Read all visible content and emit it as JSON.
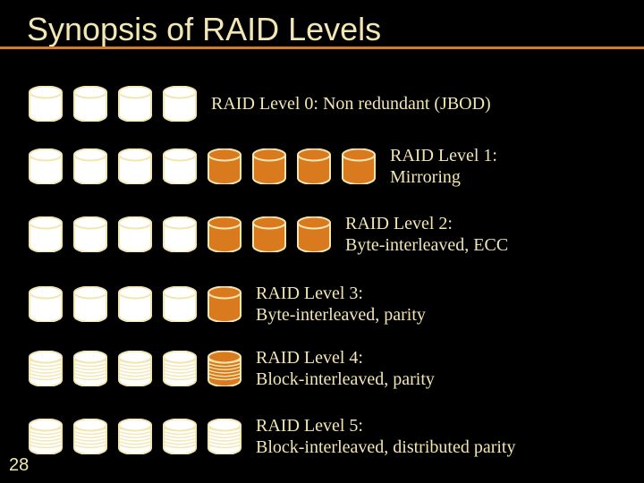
{
  "slide": {
    "title": "Synopsis of RAID Levels",
    "slide_number": "28",
    "colors": {
      "background": "#000000",
      "title_color": "#f2e6b3",
      "text_color": "#f2e6b3",
      "accent_bar": "#d97a1f",
      "disk_outline": "#f2e6b3",
      "disk_fill_white": "#ffffff",
      "disk_fill_orange": "#d97a1f"
    },
    "disk_geometry": {
      "width": 38,
      "height": 40,
      "gap": 12
    },
    "layout": {
      "row_tops": [
        96,
        162,
        238,
        316,
        388,
        464
      ],
      "label_left_edges": [
        250,
        460,
        438,
        290,
        300,
        300
      ]
    },
    "rows": [
      {
        "label": "RAID Level 0: Non redundant (JBOD)",
        "label_lines": [
          "RAID Level 0: Non redundant (JBOD)"
        ],
        "disks": [
          {
            "fill": "white",
            "striped": false
          },
          {
            "fill": "white",
            "striped": false
          },
          {
            "fill": "white",
            "striped": false
          },
          {
            "fill": "white",
            "striped": false
          }
        ]
      },
      {
        "label": "RAID Level 1: Mirroring",
        "label_lines": [
          "RAID Level 1:",
          "Mirroring"
        ],
        "disks": [
          {
            "fill": "white",
            "striped": false
          },
          {
            "fill": "white",
            "striped": false
          },
          {
            "fill": "white",
            "striped": false
          },
          {
            "fill": "white",
            "striped": false
          },
          {
            "fill": "orange",
            "striped": false
          },
          {
            "fill": "orange",
            "striped": false
          },
          {
            "fill": "orange",
            "striped": false
          },
          {
            "fill": "orange",
            "striped": false
          }
        ]
      },
      {
        "label": "RAID Level 2: Byte-interleaved, ECC",
        "label_lines": [
          "RAID Level 2:",
          "Byte-interleaved, ECC"
        ],
        "disks": [
          {
            "fill": "white",
            "striped": false
          },
          {
            "fill": "white",
            "striped": false
          },
          {
            "fill": "white",
            "striped": false
          },
          {
            "fill": "white",
            "striped": false
          },
          {
            "fill": "orange",
            "striped": false
          },
          {
            "fill": "orange",
            "striped": false
          },
          {
            "fill": "orange",
            "striped": false
          }
        ]
      },
      {
        "label": "RAID Level 3: Byte-interleaved, parity",
        "label_lines": [
          "RAID Level 3:",
          "Byte-interleaved, parity"
        ],
        "disks": [
          {
            "fill": "white",
            "striped": false
          },
          {
            "fill": "white",
            "striped": false
          },
          {
            "fill": "white",
            "striped": false
          },
          {
            "fill": "white",
            "striped": false
          },
          {
            "fill": "orange",
            "striped": false
          }
        ]
      },
      {
        "label": "RAID Level 4: Block-interleaved, parity",
        "label_lines": [
          "RAID Level 4:",
          "Block-interleaved, parity"
        ],
        "disks": [
          {
            "fill": "white",
            "striped": true
          },
          {
            "fill": "white",
            "striped": true
          },
          {
            "fill": "white",
            "striped": true
          },
          {
            "fill": "white",
            "striped": true
          },
          {
            "fill": "orange",
            "striped": true
          }
        ]
      },
      {
        "label": "RAID Level 5: Block-interleaved, distributed parity",
        "label_lines": [
          "RAID Level 5:",
          "Block-interleaved, distributed parity"
        ],
        "disks": [
          {
            "fill": "white",
            "striped": true
          },
          {
            "fill": "white",
            "striped": true
          },
          {
            "fill": "white",
            "striped": true
          },
          {
            "fill": "white",
            "striped": true
          },
          {
            "fill": "white",
            "striped": true
          }
        ]
      }
    ]
  }
}
